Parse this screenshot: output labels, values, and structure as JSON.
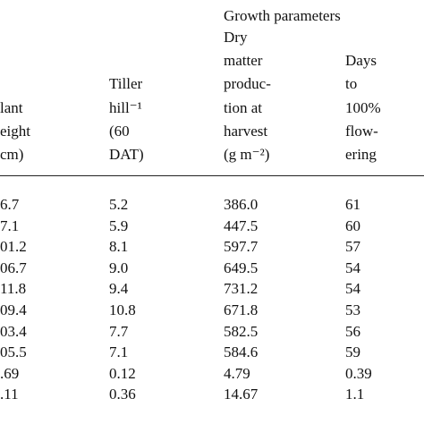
{
  "table": {
    "group_header": "Growth parameters",
    "columns": [
      [
        "lant",
        "eight",
        "cm)"
      ],
      [
        "Tiller",
        "hill⁻¹",
        "(60",
        "DAT)"
      ],
      [
        "Dry",
        "matter",
        "produc-",
        "tion at",
        "harvest",
        "(g m⁻²)"
      ],
      [
        "Days",
        "to",
        "100%",
        "flow-",
        "ering"
      ]
    ],
    "rows": [
      [
        "6.7",
        "5.2",
        "386.0",
        "61"
      ],
      [
        "7.1",
        "5.9",
        "447.5",
        "60"
      ],
      [
        "01.2",
        "8.1",
        "597.7",
        "57"
      ],
      [
        "06.7",
        "9.0",
        "649.5",
        "54"
      ],
      [
        "11.8",
        "9.4",
        "731.2",
        "54"
      ],
      [
        "09.4",
        "10.8",
        "671.8",
        "53"
      ],
      [
        "03.4",
        "7.7",
        "582.5",
        "56"
      ],
      [
        "05.5",
        "7.1",
        "584.6",
        "59"
      ],
      [
        ".69",
        "0.12",
        "4.79",
        "0.39"
      ],
      [
        ".11",
        "0.36",
        "14.67",
        "1.1"
      ]
    ]
  }
}
